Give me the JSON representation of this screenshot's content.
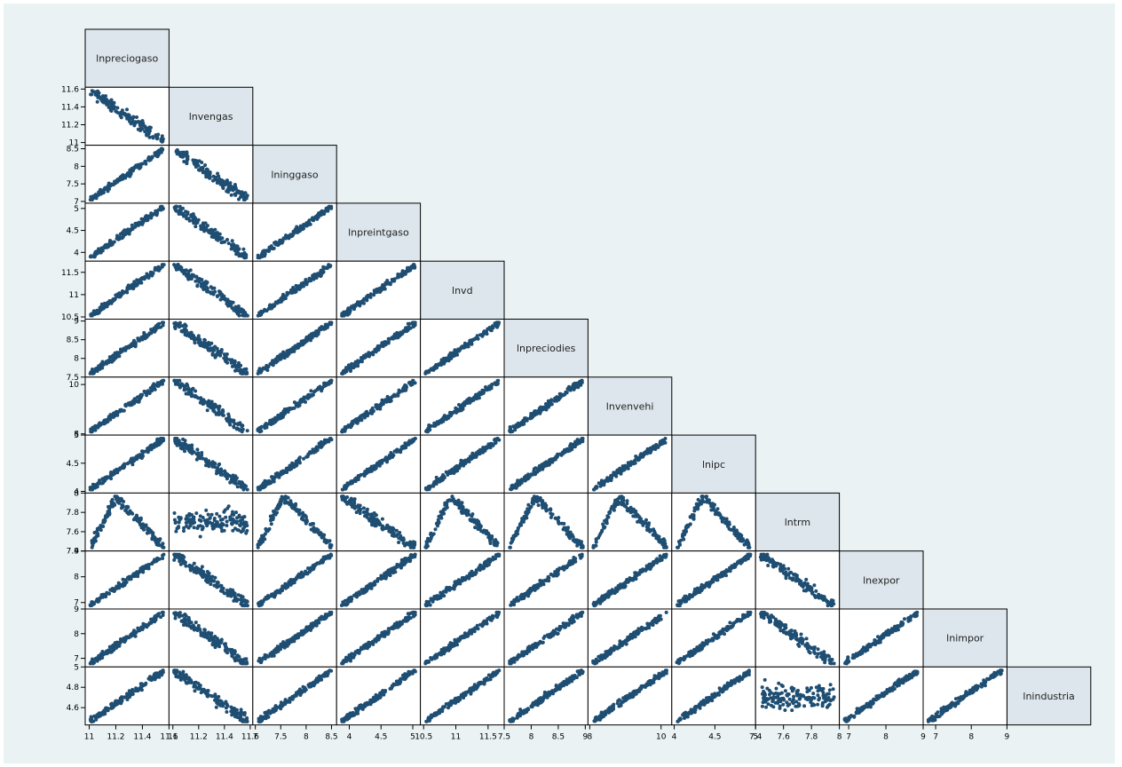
{
  "chart_data": {
    "type": "scatter",
    "kind": "scatterplot-matrix",
    "layout": "lower-half",
    "background_color": "#eaf2f3",
    "label_cell_color": "#dce6ec",
    "marker_color": "#1f4e73",
    "variables": [
      {
        "name": "lnpreciogaso",
        "ticks": [
          "11",
          "11.2",
          "11.4",
          "11.6"
        ],
        "range": [
          10.97,
          11.6
        ],
        "axis_ticks_on": "y"
      },
      {
        "name": "lnvengas",
        "ticks": [
          "11",
          "11.2",
          "11.4",
          "11.6"
        ],
        "range": [
          10.97,
          11.62
        ],
        "axis_ticks_on": "both"
      },
      {
        "name": "lninggaso",
        "ticks": [
          "7",
          "7.5",
          "8",
          "8.5"
        ],
        "range": [
          6.95,
          8.6
        ],
        "axis_ticks_on": "both"
      },
      {
        "name": "lnpreintgaso",
        "ticks": [
          "4",
          "4.5",
          "5"
        ],
        "range": [
          3.8,
          5.12
        ],
        "axis_ticks_on": "both"
      },
      {
        "name": "lnvd",
        "ticks": [
          "10.5",
          "11",
          "11.5"
        ],
        "range": [
          10.45,
          11.75
        ],
        "axis_ticks_on": "both"
      },
      {
        "name": "lnpreciodies",
        "ticks": [
          "7.5",
          "8",
          "8.5",
          "9"
        ],
        "range": [
          7.5,
          9.05
        ],
        "axis_ticks_on": "both"
      },
      {
        "name": "lnvenvehi",
        "ticks": [
          "8",
          "10"
        ],
        "range": [
          7.95,
          10.3
        ],
        "axis_ticks_on": "both"
      },
      {
        "name": "lnipc",
        "ticks": [
          "4",
          "4.5",
          "5"
        ],
        "range": [
          3.97,
          5.0
        ],
        "axis_ticks_on": "both"
      },
      {
        "name": "lntrm",
        "ticks": [
          "7.4",
          "7.6",
          "7.8",
          "8"
        ],
        "range": [
          7.4,
          8.0
        ],
        "axis_ticks_on": "both"
      },
      {
        "name": "lnexpor",
        "ticks": [
          "7",
          "8",
          "9"
        ],
        "range": [
          6.75,
          9.0
        ],
        "axis_ticks_on": "both"
      },
      {
        "name": "lnimpor",
        "ticks": [
          "7",
          "8",
          "9"
        ],
        "range": [
          6.65,
          9.0
        ],
        "axis_ticks_on": "both"
      },
      {
        "name": "lnindustria",
        "ticks": [
          "4.4",
          "4.6",
          "4.8",
          "5"
        ],
        "range": [
          4.43,
          5.0
        ],
        "axis_ticks_on": "x"
      }
    ],
    "pair_pattern": {
      "description": "relationship pattern per cell (row var vs column var)",
      "by_row": [
        [],
        [
          "neg"
        ],
        [
          "pos",
          "neg"
        ],
        [
          "pos",
          "neg",
          "pos"
        ],
        [
          "pos",
          "neg",
          "pos",
          "pos"
        ],
        [
          "pos",
          "neg",
          "pos",
          "pos",
          "pos"
        ],
        [
          "pos",
          "neg",
          "pos",
          "pos",
          "pos",
          "pos"
        ],
        [
          "pos",
          "neg",
          "pos",
          "pos",
          "pos",
          "pos",
          "pos"
        ],
        [
          "hump",
          "flat",
          "hump",
          "neg",
          "hump",
          "hump",
          "hump",
          "hump"
        ],
        [
          "pos",
          "neg",
          "pos",
          "pos",
          "pos",
          "pos",
          "pos",
          "pos",
          "neg"
        ],
        [
          "pos",
          "neg",
          "pos",
          "pos",
          "pos",
          "pos",
          "pos",
          "pos",
          "neg",
          "pos"
        ],
        [
          "pos",
          "neg",
          "pos",
          "pos",
          "pos",
          "pos",
          "pos",
          "pos",
          "flat",
          "pos",
          "pos"
        ]
      ]
    },
    "grid": false,
    "legend": "none"
  }
}
